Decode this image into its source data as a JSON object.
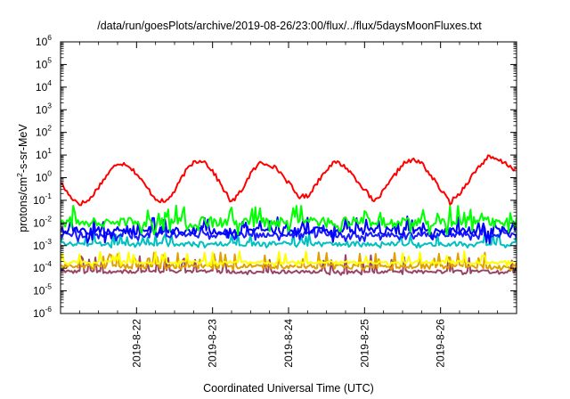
{
  "chart_data": {
    "type": "line",
    "title": "/data/run/goesPlots/archive/2019-08-26/23:00/flux/../flux/5daysMoonFluxes.txt",
    "xlabel": "Coordinated Universal Time (UTC)",
    "ylabel_parts": {
      "base": "protons/cm",
      "sup": "2",
      "rest": "-s-sr-MeV"
    },
    "y_scale": "log",
    "ylim_exponents": [
      -6,
      6
    ],
    "y_ticks": [
      {
        "base": "10",
        "exp": "-6",
        "value": 1e-06
      },
      {
        "base": "10",
        "exp": "-5",
        "value": 1e-05
      },
      {
        "base": "10",
        "exp": "-4",
        "value": 0.0001
      },
      {
        "base": "10",
        "exp": "-3",
        "value": 0.001
      },
      {
        "base": "10",
        "exp": "-2",
        "value": 0.01
      },
      {
        "base": "10",
        "exp": "-1",
        "value": 0.1
      },
      {
        "base": "10",
        "exp": "0",
        "value": 1
      },
      {
        "base": "10",
        "exp": "1",
        "value": 10
      },
      {
        "base": "10",
        "exp": "2",
        "value": 100
      },
      {
        "base": "10",
        "exp": "3",
        "value": 1000
      },
      {
        "base": "10",
        "exp": "4",
        "value": 10000
      },
      {
        "base": "10",
        "exp": "5",
        "value": 100000
      },
      {
        "base": "10",
        "exp": "6",
        "value": 1000000
      }
    ],
    "x_range": [
      "2019-08-21T00:00",
      "2019-08-27T00:00"
    ],
    "x_ticks": [
      "2019-8-22",
      "2019-8-23",
      "2019-8-24",
      "2019-8-25",
      "2019-8-26"
    ],
    "x_tick_values": [
      "2019-08-22T00:00",
      "2019-08-23T00:00",
      "2019-08-24T00:00",
      "2019-08-25T00:00",
      "2019-08-26T00:00"
    ],
    "grid": false,
    "legend": "none",
    "series": [
      {
        "color": "#ff0000",
        "base_level": 0.8,
        "noise": 0.1,
        "points": [
          [
            "2019-08-21T00:00",
            0.6
          ],
          [
            "2019-08-21T03:00",
            0.15
          ],
          [
            "2019-08-21T06:00",
            0.07
          ],
          [
            "2019-08-21T09:00",
            0.1
          ],
          [
            "2019-08-21T12:00",
            0.4
          ],
          [
            "2019-08-21T15:00",
            1.5
          ],
          [
            "2019-08-21T18:00",
            4.5
          ],
          [
            "2019-08-21T21:00",
            4.0
          ],
          [
            "2019-08-22T00:00",
            1.5
          ],
          [
            "2019-08-22T03:00",
            0.4
          ],
          [
            "2019-08-22T06:00",
            0.12
          ],
          [
            "2019-08-22T09:00",
            0.08
          ],
          [
            "2019-08-22T12:00",
            0.25
          ],
          [
            "2019-08-22T15:00",
            1.5
          ],
          [
            "2019-08-22T18:00",
            5.0
          ],
          [
            "2019-08-22T21:00",
            6.0
          ],
          [
            "2019-08-23T00:00",
            2.0
          ],
          [
            "2019-08-23T03:00",
            0.4
          ],
          [
            "2019-08-23T06:00",
            0.08
          ],
          [
            "2019-08-23T09:00",
            0.25
          ],
          [
            "2019-08-23T12:00",
            1.5
          ],
          [
            "2019-08-23T15:00",
            4.5
          ],
          [
            "2019-08-23T18:00",
            4.0
          ],
          [
            "2019-08-23T21:00",
            2.0
          ],
          [
            "2019-08-24T00:00",
            0.6
          ],
          [
            "2019-08-24T03:00",
            0.15
          ],
          [
            "2019-08-24T06:00",
            0.15
          ],
          [
            "2019-08-24T09:00",
            0.6
          ],
          [
            "2019-08-24T12:00",
            2.5
          ],
          [
            "2019-08-24T15:00",
            5.0
          ],
          [
            "2019-08-24T18:00",
            3.0
          ],
          [
            "2019-08-24T21:00",
            1.0
          ],
          [
            "2019-08-25T00:00",
            0.3
          ],
          [
            "2019-08-25T03:00",
            0.08
          ],
          [
            "2019-08-25T06:00",
            0.25
          ],
          [
            "2019-08-25T09:00",
            1.0
          ],
          [
            "2019-08-25T12:00",
            4.0
          ],
          [
            "2019-08-25T15:00",
            6.0
          ],
          [
            "2019-08-25T18:00",
            4.5
          ],
          [
            "2019-08-25T21:00",
            1.2
          ],
          [
            "2019-08-26T00:00",
            0.3
          ],
          [
            "2019-08-26T03:00",
            0.08
          ],
          [
            "2019-08-26T06:00",
            0.2
          ],
          [
            "2019-08-26T09:00",
            0.8
          ],
          [
            "2019-08-26T12:00",
            3.0
          ],
          [
            "2019-08-26T15:00",
            8.0
          ],
          [
            "2019-08-26T18:00",
            6.0
          ],
          [
            "2019-08-26T21:00",
            4.0
          ],
          [
            "2019-08-27T00:00",
            2.0
          ]
        ]
      },
      {
        "color": "#00ff00",
        "base_level": 0.011,
        "noise": 0.45,
        "spike_up": 0.06,
        "spike_down": 0.003
      },
      {
        "color": "#0000ff",
        "base_level": 0.0045,
        "noise": 0.35,
        "spike_up": 0.02,
        "spike_down": 0.0012
      },
      {
        "color": "#1a1aff",
        "base_level": 0.003,
        "noise": 0.25,
        "spike_up": 0.008,
        "spike_down": 0.0015
      },
      {
        "color": "#00c0c0",
        "base_level": 0.0012,
        "noise": 0.2,
        "spike_up": 0.004,
        "spike_down": 0.0008
      },
      {
        "color": "#ffff00",
        "base_level": 0.00018,
        "noise": 0.15,
        "spike_up": 0.0006,
        "spike_down": 0.00012
      },
      {
        "color": "#e0a000",
        "base_level": 0.00012,
        "noise": 0.2,
        "spike_up": 0.0005,
        "spike_down": 8e-05
      },
      {
        "color": "#994466",
        "base_level": 7e-05,
        "noise": 0.15,
        "spike_up": 0.0004,
        "spike_down": 5e-05
      }
    ]
  }
}
